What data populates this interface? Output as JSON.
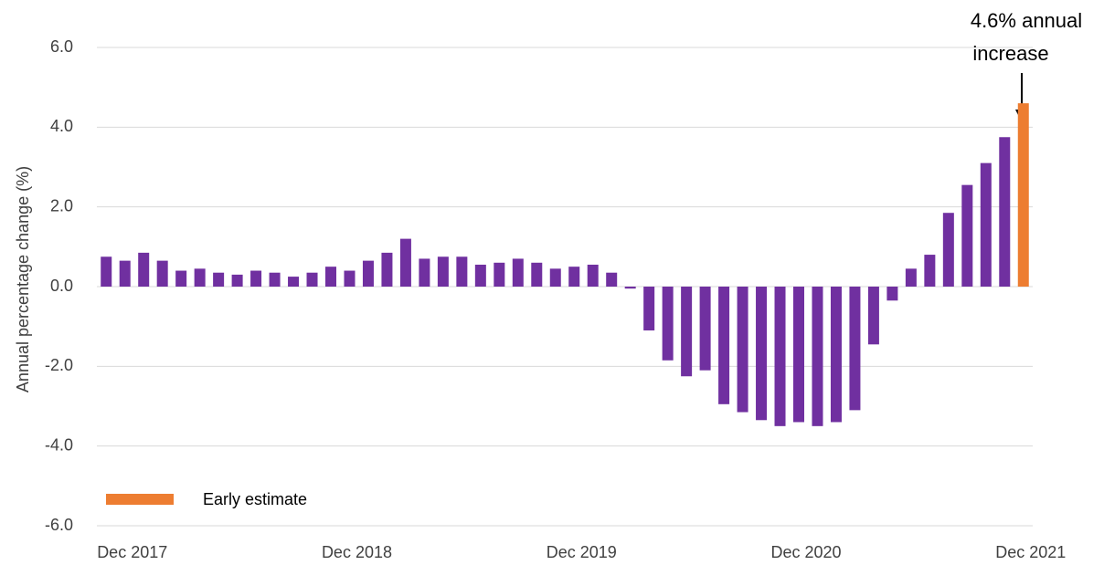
{
  "chart_data": {
    "type": "bar",
    "y_label": "Annual percentage change (%)",
    "annotation": [
      "4.6% annual",
      "increase"
    ],
    "categories": [
      null,
      "Dec 2017",
      null,
      null,
      null,
      null,
      null,
      null,
      null,
      null,
      null,
      null,
      null,
      "Dec 2018",
      null,
      null,
      null,
      null,
      null,
      null,
      null,
      null,
      null,
      null,
      null,
      "Dec 2019",
      null,
      null,
      null,
      null,
      null,
      null,
      null,
      null,
      null,
      null,
      null,
      "Dec 2020",
      null,
      null,
      null,
      null,
      null,
      null,
      null,
      null,
      null,
      null,
      null,
      "Dec 2021"
    ],
    "series": [
      {
        "color": "#7030a0",
        "values": [
          0.75,
          0.65,
          0.85,
          0.65,
          0.4,
          0.45,
          0.35,
          0.3,
          0.4,
          0.35,
          0.25,
          0.35,
          0.5,
          0.4,
          0.65,
          0.85,
          1.2,
          0.7,
          0.75,
          0.75,
          0.55,
          0.6,
          0.7,
          0.6,
          0.45,
          0.5,
          0.55,
          0.35,
          -0.05,
          -1.1,
          -1.85,
          -2.25,
          -2.1,
          -2.95,
          -3.15,
          -3.35,
          -3.5,
          -3.4,
          -3.5,
          -3.4,
          -3.1,
          -1.45,
          -0.35,
          0.45,
          0.8,
          1.85,
          2.55,
          3.1,
          3.75,
          null
        ]
      },
      {
        "name": "Early estimate",
        "color": "#ed7d31",
        "values": [
          null,
          null,
          null,
          null,
          null,
          null,
          null,
          null,
          null,
          null,
          null,
          null,
          null,
          null,
          null,
          null,
          null,
          null,
          null,
          null,
          null,
          null,
          null,
          null,
          null,
          null,
          null,
          null,
          null,
          null,
          null,
          null,
          null,
          null,
          null,
          null,
          null,
          null,
          null,
          null,
          null,
          null,
          null,
          null,
          null,
          null,
          null,
          null,
          null,
          4.6
        ]
      }
    ],
    "ylim": [
      -6,
      6
    ],
    "yticks": [
      {
        "value": -6,
        "label": "-6.0"
      },
      {
        "value": -4,
        "label": "-4.0"
      },
      {
        "value": -2,
        "label": "-2.0"
      },
      {
        "value": 0,
        "label": "0.0"
      },
      {
        "value": 2,
        "label": "2.0"
      },
      {
        "value": 4,
        "label": "4.0"
      },
      {
        "value": 6,
        "label": "6.0"
      }
    ],
    "grid": true
  }
}
